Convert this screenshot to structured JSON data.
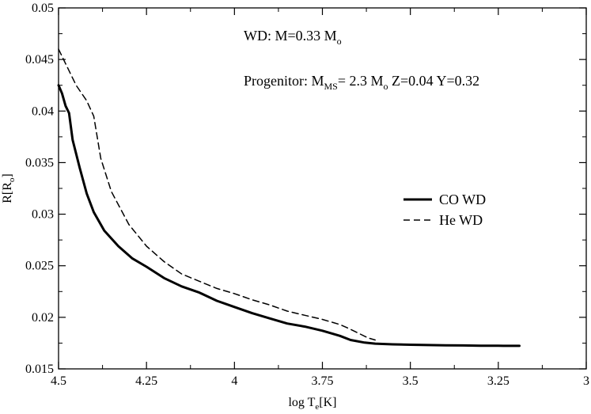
{
  "chart_data": {
    "type": "line",
    "title": "",
    "xlabel": {
      "base": "log T",
      "sub": "e",
      "rest": "[K]"
    },
    "ylabel": {
      "base": "R[R",
      "sub": "o",
      "rest": "]"
    },
    "xlim": [
      4.5,
      3.0
    ],
    "ylim": [
      0.015,
      0.05
    ],
    "x_reversed": true,
    "xticks": [
      {
        "value": 4.5,
        "label": "4.5"
      },
      {
        "value": 4.25,
        "label": "4.25"
      },
      {
        "value": 4.0,
        "label": "4"
      },
      {
        "value": 3.75,
        "label": "3.75"
      },
      {
        "value": 3.5,
        "label": "3.5"
      },
      {
        "value": 3.25,
        "label": "3.25"
      },
      {
        "value": 3.0,
        "label": "3"
      }
    ],
    "yticks": [
      {
        "value": 0.015,
        "label": "0.015"
      },
      {
        "value": 0.02,
        "label": "0.02"
      },
      {
        "value": 0.025,
        "label": "0.025"
      },
      {
        "value": 0.03,
        "label": "0.03"
      },
      {
        "value": 0.035,
        "label": "0.035"
      },
      {
        "value": 0.04,
        "label": "0.04"
      },
      {
        "value": 0.045,
        "label": "0.045"
      },
      {
        "value": 0.05,
        "label": "0.05"
      }
    ],
    "grid": false,
    "legend_position": "center-right",
    "annotations": {
      "line1": {
        "text": "WD: M=0.33 M",
        "sub": "o"
      },
      "line2": {
        "p1": "Progenitor: M",
        "sub1": "MS",
        "p2": "= 2.3 M",
        "sub2": "o",
        "p3": " Z=0.04 Y=0.32"
      }
    },
    "series": [
      {
        "name": "CO WD",
        "style": "solid",
        "color": "#000000",
        "x": [
          4.5,
          4.49,
          4.48,
          4.47,
          4.46,
          4.44,
          4.42,
          4.4,
          4.37,
          4.33,
          4.29,
          4.25,
          4.2,
          4.15,
          4.1,
          4.05,
          4.0,
          3.95,
          3.9,
          3.85,
          3.8,
          3.75,
          3.72,
          3.7,
          3.67,
          3.63,
          3.6,
          3.55,
          3.5,
          3.45,
          3.4,
          3.35,
          3.3,
          3.25,
          3.19
        ],
        "y": [
          0.0425,
          0.0417,
          0.0405,
          0.0398,
          0.0372,
          0.0345,
          0.032,
          0.0302,
          0.0284,
          0.0269,
          0.0257,
          0.0249,
          0.0238,
          0.023,
          0.0224,
          0.0216,
          0.021,
          0.0204,
          0.0199,
          0.0194,
          0.0191,
          0.0187,
          0.0184,
          0.0182,
          0.0178,
          0.01755,
          0.01745,
          0.01738,
          0.01734,
          0.01731,
          0.01729,
          0.01727,
          0.01725,
          0.01724,
          0.01723
        ]
      },
      {
        "name": "He WD",
        "style": "dashed",
        "color": "#000000",
        "x": [
          4.5,
          4.48,
          4.45,
          4.42,
          4.4,
          4.38,
          4.35,
          4.3,
          4.25,
          4.2,
          4.15,
          4.1,
          4.05,
          4.0,
          3.95,
          3.9,
          3.85,
          3.8,
          3.75,
          3.72,
          3.7,
          3.68,
          3.65,
          3.62,
          3.6
        ],
        "y": [
          0.046,
          0.0446,
          0.0425,
          0.041,
          0.0395,
          0.0354,
          0.0322,
          0.029,
          0.0269,
          0.0254,
          0.0242,
          0.0235,
          0.0228,
          0.0223,
          0.0217,
          0.0212,
          0.0206,
          0.0202,
          0.0198,
          0.0195,
          0.0193,
          0.019,
          0.0185,
          0.018,
          0.0178
        ]
      }
    ]
  }
}
